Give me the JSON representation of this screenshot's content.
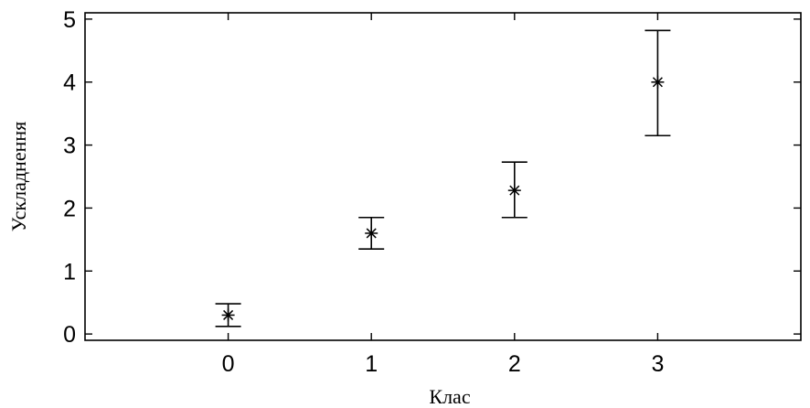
{
  "chart_data": {
    "type": "scatter",
    "xlabel": "Клас",
    "ylabel": "Ускладнення",
    "x_ticks": [
      "0",
      "1",
      "2",
      "3"
    ],
    "y_ticks": [
      "0",
      "1",
      "2",
      "3",
      "4",
      "5"
    ],
    "xlim": [
      -1,
      4
    ],
    "ylim": [
      -0.1,
      5.1
    ],
    "grid": false,
    "series": [
      {
        "marker": "asterisk",
        "points": [
          {
            "x": 0,
            "y": 0.3,
            "y_low": 0.12,
            "y_high": 0.48
          },
          {
            "x": 1,
            "y": 1.6,
            "y_low": 1.35,
            "y_high": 1.85
          },
          {
            "x": 2,
            "y": 2.28,
            "y_low": 1.85,
            "y_high": 2.73
          },
          {
            "x": 3,
            "y": 4.0,
            "y_low": 3.15,
            "y_high": 4.82
          }
        ]
      }
    ]
  }
}
